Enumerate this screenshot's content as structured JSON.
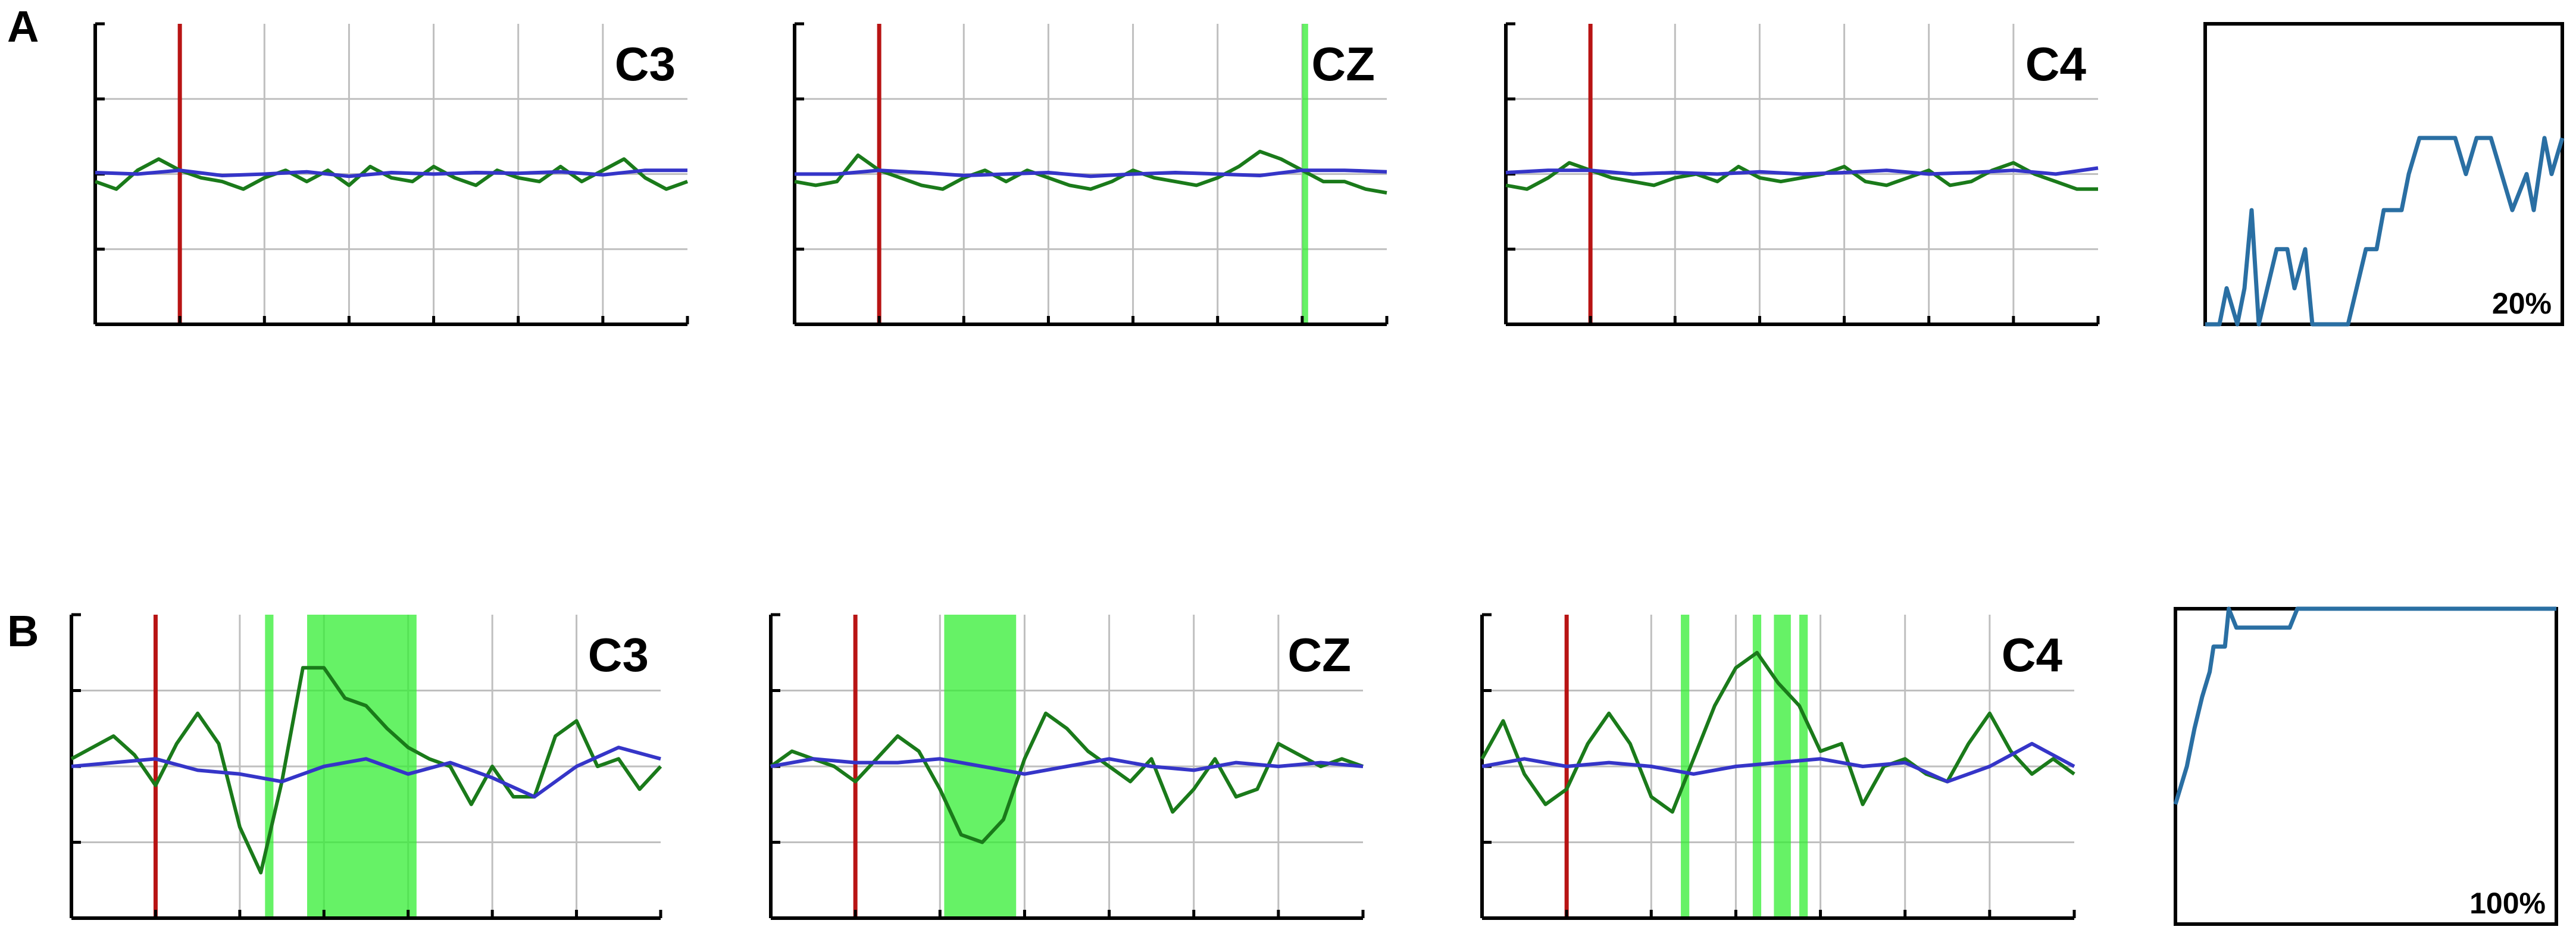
{
  "colors": {
    "eeg_trace": "#1a7a1a",
    "reference_trace": "#3535c8",
    "onset_marker": "#b81414",
    "detection_highlight": "#33ee33",
    "accuracy_line": "#2a6fa3",
    "grid": "#bfbfbf",
    "axis": "#000000"
  },
  "rows": [
    {
      "label": "A",
      "accuracy_label": "20%"
    },
    {
      "label": "B",
      "accuracy_label": "100%"
    }
  ],
  "chart_data": [
    {
      "type": "line",
      "row": "A",
      "channel": "C3",
      "xlim": [
        0,
        7
      ],
      "ylim": [
        -2,
        2
      ],
      "grid": true,
      "onset": 1.0,
      "highlights": [],
      "series": [
        {
          "color": "#1a7a1a",
          "x": [
            0,
            0.25,
            0.5,
            0.75,
            1,
            1.25,
            1.5,
            1.75,
            2,
            2.25,
            2.5,
            2.75,
            3,
            3.25,
            3.5,
            3.75,
            4,
            4.25,
            4.5,
            4.75,
            5,
            5.25,
            5.5,
            5.75,
            6,
            6.25,
            6.5,
            6.75,
            7
          ],
          "y": [
            -0.1,
            -0.2,
            0.05,
            0.2,
            0.05,
            -0.05,
            -0.1,
            -0.2,
            -0.05,
            0.05,
            -0.1,
            0.05,
            -0.15,
            0.1,
            -0.05,
            -0.1,
            0.1,
            -0.05,
            -0.15,
            0.05,
            -0.05,
            -0.1,
            0.1,
            -0.1,
            0.05,
            0.2,
            -0.05,
            -0.2,
            -0.1
          ]
        },
        {
          "color": "#3535c8",
          "x": [
            0,
            0.5,
            1,
            1.5,
            2,
            2.5,
            3,
            3.5,
            4,
            4.5,
            5,
            5.5,
            6,
            6.5,
            7
          ],
          "y": [
            0.02,
            0.0,
            0.05,
            -0.02,
            0.0,
            0.03,
            -0.03,
            0.02,
            0.0,
            0.02,
            0.01,
            0.03,
            -0.01,
            0.05,
            0.05
          ]
        }
      ]
    },
    {
      "type": "line",
      "row": "A",
      "channel": "CZ",
      "xlim": [
        0,
        7
      ],
      "ylim": [
        -2,
        2
      ],
      "grid": true,
      "onset": 1.0,
      "highlights": [
        [
          6.0,
          6.07
        ]
      ],
      "series": [
        {
          "color": "#1a7a1a",
          "x": [
            0,
            0.25,
            0.5,
            0.75,
            1,
            1.25,
            1.5,
            1.75,
            2,
            2.25,
            2.5,
            2.75,
            3,
            3.25,
            3.5,
            3.75,
            4,
            4.25,
            4.5,
            4.75,
            5,
            5.25,
            5.5,
            5.75,
            6,
            6.25,
            6.5,
            6.75,
            7
          ],
          "y": [
            -0.1,
            -0.15,
            -0.1,
            0.25,
            0.05,
            -0.05,
            -0.15,
            -0.2,
            -0.05,
            0.05,
            -0.1,
            0.05,
            -0.05,
            -0.15,
            -0.2,
            -0.1,
            0.05,
            -0.05,
            -0.1,
            -0.15,
            -0.05,
            0.1,
            0.3,
            0.2,
            0.05,
            -0.1,
            -0.1,
            -0.2,
            -0.25
          ]
        },
        {
          "color": "#3535c8",
          "x": [
            0,
            0.5,
            1,
            1.5,
            2,
            2.5,
            3,
            3.5,
            4,
            4.5,
            5,
            5.5,
            6,
            6.5,
            7
          ],
          "y": [
            0.0,
            0.0,
            0.05,
            0.02,
            -0.02,
            0.0,
            0.02,
            -0.03,
            0.0,
            0.02,
            0.0,
            -0.02,
            0.05,
            0.05,
            0.03
          ]
        }
      ]
    },
    {
      "type": "line",
      "row": "A",
      "channel": "C4",
      "xlim": [
        0,
        7
      ],
      "ylim": [
        -2,
        2
      ],
      "grid": true,
      "onset": 1.0,
      "highlights": [],
      "series": [
        {
          "color": "#1a7a1a",
          "x": [
            0,
            0.25,
            0.5,
            0.75,
            1,
            1.25,
            1.5,
            1.75,
            2,
            2.25,
            2.5,
            2.75,
            3,
            3.25,
            3.5,
            3.75,
            4,
            4.25,
            4.5,
            4.75,
            5,
            5.25,
            5.5,
            5.75,
            6,
            6.25,
            6.5,
            6.75,
            7
          ],
          "y": [
            -0.15,
            -0.2,
            -0.05,
            0.15,
            0.05,
            -0.05,
            -0.1,
            -0.15,
            -0.05,
            0.0,
            -0.1,
            0.1,
            -0.05,
            -0.1,
            -0.05,
            0.0,
            0.1,
            -0.1,
            -0.15,
            -0.05,
            0.05,
            -0.15,
            -0.1,
            0.05,
            0.15,
            0.0,
            -0.1,
            -0.2,
            -0.2
          ]
        },
        {
          "color": "#3535c8",
          "x": [
            0,
            0.5,
            1,
            1.5,
            2,
            2.5,
            3,
            3.5,
            4,
            4.5,
            5,
            5.5,
            6,
            6.5,
            7
          ],
          "y": [
            0.02,
            0.05,
            0.05,
            0.0,
            0.02,
            0.0,
            0.03,
            0.0,
            0.02,
            0.05,
            0.0,
            0.02,
            0.05,
            0.0,
            0.08
          ]
        }
      ]
    },
    {
      "type": "line",
      "row": "A",
      "label": "20%",
      "xlim": [
        0,
        1
      ],
      "ylim": [
        0,
        1
      ],
      "series": [
        {
          "color": "#2a6fa3",
          "x": [
            0,
            0.04,
            0.06,
            0.09,
            0.11,
            0.13,
            0.15,
            0.2,
            0.23,
            0.25,
            0.28,
            0.3,
            0.35,
            0.38,
            0.4,
            0.45,
            0.48,
            0.5,
            0.52,
            0.55,
            0.57,
            0.6,
            0.65,
            0.7,
            0.73,
            0.76,
            0.8,
            0.86,
            0.9,
            0.92,
            0.95,
            0.97,
            1.0
          ],
          "y": [
            0.0,
            0.0,
            0.12,
            0.0,
            0.12,
            0.38,
            0.0,
            0.25,
            0.25,
            0.12,
            0.25,
            0.0,
            0.0,
            0.0,
            0.0,
            0.25,
            0.25,
            0.38,
            0.38,
            0.38,
            0.5,
            0.62,
            0.62,
            0.62,
            0.5,
            0.62,
            0.62,
            0.38,
            0.5,
            0.38,
            0.62,
            0.5,
            0.62
          ]
        }
      ]
    },
    {
      "type": "line",
      "row": "B",
      "channel": "C3",
      "xlim": [
        0,
        7
      ],
      "ylim": [
        -2,
        2
      ],
      "grid": true,
      "onset": 1.0,
      "highlights": [
        [
          2.3,
          2.4
        ],
        [
          2.8,
          4.1
        ]
      ],
      "series": [
        {
          "color": "#1a7a1a",
          "x": [
            0,
            0.25,
            0.5,
            0.75,
            1,
            1.25,
            1.5,
            1.75,
            2,
            2.25,
            2.5,
            2.75,
            3,
            3.25,
            3.5,
            3.75,
            4,
            4.25,
            4.5,
            4.75,
            5,
            5.25,
            5.5,
            5.75,
            6,
            6.25,
            6.5,
            6.75,
            7
          ],
          "y": [
            0.1,
            0.25,
            0.4,
            0.15,
            -0.25,
            0.3,
            0.7,
            0.3,
            -0.8,
            -1.4,
            -0.2,
            1.3,
            1.3,
            0.9,
            0.8,
            0.5,
            0.25,
            0.1,
            0.0,
            -0.5,
            0.0,
            -0.4,
            -0.4,
            0.4,
            0.6,
            0.0,
            0.1,
            -0.3,
            0.0
          ]
        },
        {
          "color": "#3535c8",
          "x": [
            0,
            0.5,
            1,
            1.5,
            2,
            2.5,
            3,
            3.5,
            4,
            4.5,
            5,
            5.5,
            6,
            6.5,
            7
          ],
          "y": [
            0.0,
            0.05,
            0.1,
            -0.05,
            -0.1,
            -0.2,
            0.0,
            0.1,
            -0.1,
            0.05,
            -0.15,
            -0.4,
            0.0,
            0.25,
            0.1
          ]
        }
      ]
    },
    {
      "type": "line",
      "row": "B",
      "channel": "CZ",
      "xlim": [
        0,
        7
      ],
      "ylim": [
        -2,
        2
      ],
      "grid": true,
      "onset": 1.0,
      "highlights": [
        [
          2.05,
          2.9
        ]
      ],
      "series": [
        {
          "color": "#1a7a1a",
          "x": [
            0,
            0.25,
            0.5,
            0.75,
            1,
            1.25,
            1.5,
            1.75,
            2,
            2.25,
            2.5,
            2.75,
            3,
            3.25,
            3.5,
            3.75,
            4,
            4.25,
            4.5,
            4.75,
            5,
            5.25,
            5.5,
            5.75,
            6,
            6.25,
            6.5,
            6.75,
            7
          ],
          "y": [
            0.0,
            0.2,
            0.1,
            0.0,
            -0.2,
            0.1,
            0.4,
            0.2,
            -0.3,
            -0.9,
            -1.0,
            -0.7,
            0.1,
            0.7,
            0.5,
            0.2,
            0.0,
            -0.2,
            0.1,
            -0.6,
            -0.3,
            0.1,
            -0.4,
            -0.3,
            0.3,
            0.15,
            0.0,
            0.1,
            0.0
          ]
        },
        {
          "color": "#3535c8",
          "x": [
            0,
            0.5,
            1,
            1.5,
            2,
            2.5,
            3,
            3.5,
            4,
            4.5,
            5,
            5.5,
            6,
            6.5,
            7
          ],
          "y": [
            0.0,
            0.1,
            0.05,
            0.05,
            0.1,
            0.0,
            -0.1,
            0.0,
            0.1,
            0.0,
            -0.05,
            0.05,
            0.0,
            0.05,
            0.0
          ]
        }
      ]
    },
    {
      "type": "line",
      "row": "B",
      "channel": "C4",
      "xlim": [
        0,
        7
      ],
      "ylim": [
        -2,
        2
      ],
      "grid": true,
      "onset": 1.0,
      "highlights": [
        [
          2.35,
          2.45
        ],
        [
          3.2,
          3.3
        ],
        [
          3.45,
          3.65
        ],
        [
          3.75,
          3.85
        ]
      ],
      "series": [
        {
          "color": "#1a7a1a",
          "x": [
            0,
            0.25,
            0.5,
            0.75,
            1,
            1.25,
            1.5,
            1.75,
            2,
            2.25,
            2.5,
            2.75,
            3,
            3.25,
            3.5,
            3.75,
            4,
            4.25,
            4.5,
            4.75,
            5,
            5.25,
            5.5,
            5.75,
            6,
            6.25,
            6.5,
            6.75,
            7
          ],
          "y": [
            0.1,
            0.6,
            -0.1,
            -0.5,
            -0.3,
            0.3,
            0.7,
            0.3,
            -0.4,
            -0.6,
            0.1,
            0.8,
            1.3,
            1.5,
            1.1,
            0.8,
            0.2,
            0.3,
            -0.5,
            0.0,
            0.1,
            -0.1,
            -0.2,
            0.3,
            0.7,
            0.2,
            -0.1,
            0.1,
            -0.1
          ]
        },
        {
          "color": "#3535c8",
          "x": [
            0,
            0.5,
            1,
            1.5,
            2,
            2.5,
            3,
            3.5,
            4,
            4.5,
            5,
            5.5,
            6,
            6.5,
            7
          ],
          "y": [
            0.0,
            0.1,
            0.0,
            0.05,
            0.0,
            -0.1,
            0.0,
            0.05,
            0.1,
            0.0,
            0.05,
            -0.2,
            0.0,
            0.3,
            0.0
          ]
        }
      ]
    },
    {
      "type": "line",
      "row": "B",
      "label": "100%",
      "xlim": [
        0,
        1
      ],
      "ylim": [
        0,
        1
      ],
      "series": [
        {
          "color": "#2a6fa3",
          "x": [
            0,
            0.03,
            0.05,
            0.07,
            0.09,
            0.1,
            0.13,
            0.14,
            0.16,
            0.18,
            0.22,
            0.3,
            0.32,
            0.34,
            0.38,
            1.0
          ],
          "y": [
            0.38,
            0.5,
            0.62,
            0.72,
            0.8,
            0.88,
            0.88,
            1.0,
            0.94,
            0.94,
            0.94,
            0.94,
            1.0,
            1.0,
            1.0,
            1.0
          ]
        }
      ]
    }
  ]
}
